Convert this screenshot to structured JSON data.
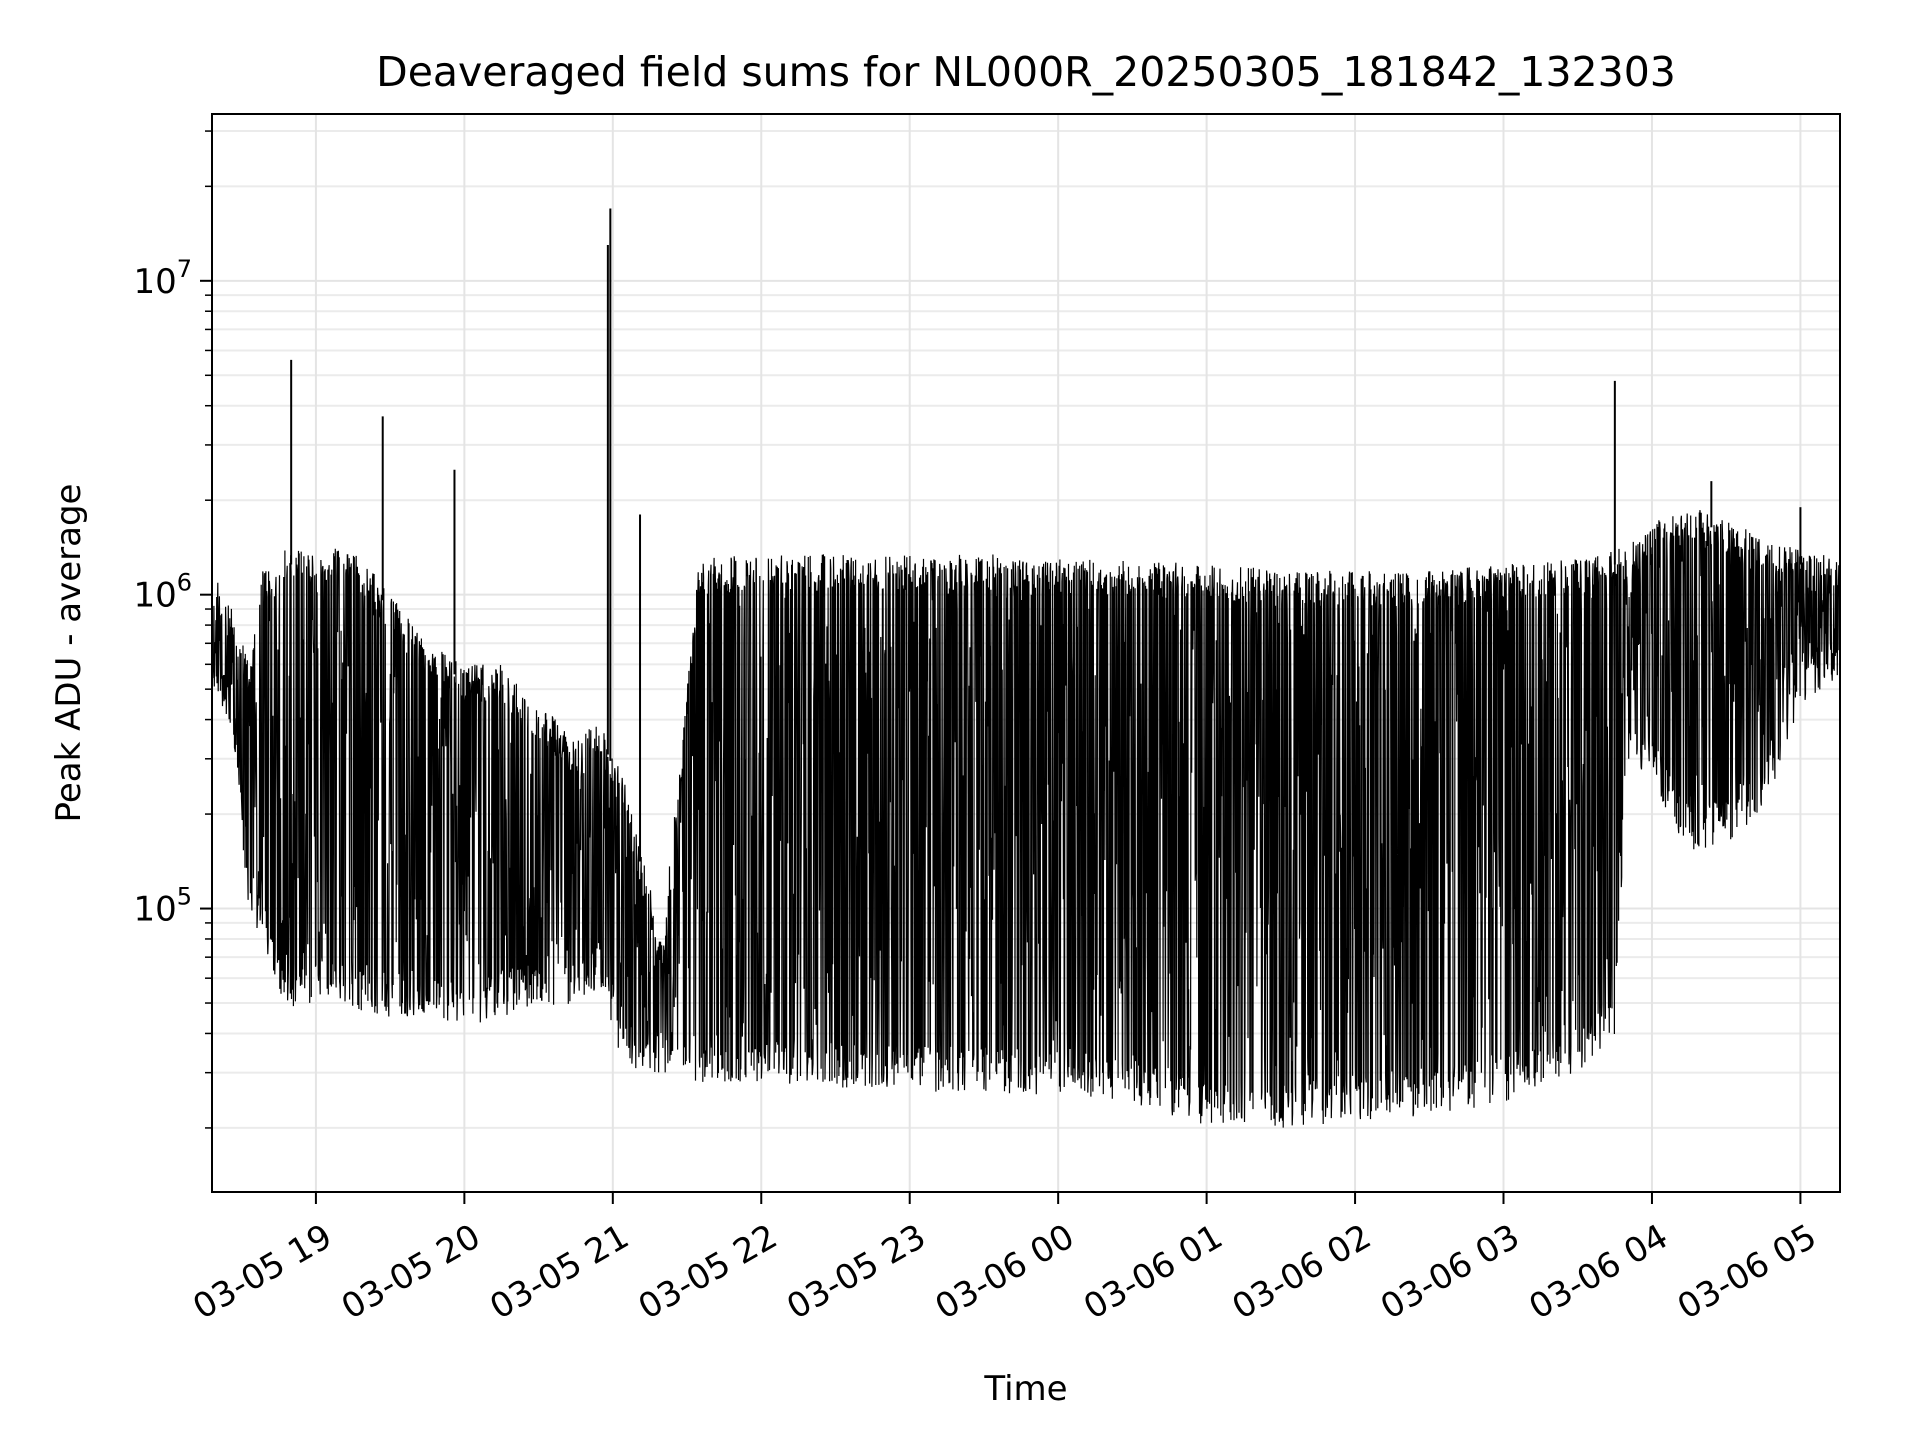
{
  "chart_data": {
    "type": "line",
    "title": "Deaveraged field sums for NL000R_20250305_181842_132303",
    "xlabel": "Time",
    "ylabel": "Peak ADU - average",
    "yscale": "log",
    "grid": true,
    "legend": "none",
    "line_color": "#000000",
    "xlim": [
      "2025-03-05 18:18",
      "2025-03-06 05:16"
    ],
    "ylim": [
      12500,
      34000000
    ],
    "x_ticks": [
      {
        "time": "2025-03-05 19:00",
        "label": "03-05 19"
      },
      {
        "time": "2025-03-05 20:00",
        "label": "03-05 20"
      },
      {
        "time": "2025-03-05 21:00",
        "label": "03-05 21"
      },
      {
        "time": "2025-03-05 22:00",
        "label": "03-05 22"
      },
      {
        "time": "2025-03-05 23:00",
        "label": "03-05 23"
      },
      {
        "time": "2025-03-06 00:00",
        "label": "03-06 00"
      },
      {
        "time": "2025-03-06 01:00",
        "label": "03-06 01"
      },
      {
        "time": "2025-03-06 02:00",
        "label": "03-06 02"
      },
      {
        "time": "2025-03-06 03:00",
        "label": "03-06 03"
      },
      {
        "time": "2025-03-06 04:00",
        "label": "03-06 04"
      },
      {
        "time": "2025-03-06 05:00",
        "label": "03-06 05"
      }
    ],
    "y_ticks": [
      {
        "value": 100000,
        "base": "10",
        "exp": "5"
      },
      {
        "value": 1000000,
        "base": "10",
        "exp": "6"
      },
      {
        "value": 10000000,
        "base": "10",
        "exp": "7"
      }
    ],
    "envelope": [
      {
        "time": "2025-03-05 18:18",
        "high": 1150000,
        "low": 500000
      },
      {
        "time": "2025-03-05 18:27",
        "high": 950000,
        "low": 330000
      },
      {
        "time": "2025-03-05 18:33",
        "high": 600000,
        "low": 95000
      },
      {
        "time": "2025-03-05 18:38",
        "high": 1200000,
        "low": 80000
      },
      {
        "time": "2025-03-05 18:48",
        "high": 1400000,
        "low": 48000
      },
      {
        "time": "2025-03-05 19:00",
        "high": 1400000,
        "low": 50000
      },
      {
        "time": "2025-03-05 19:15",
        "high": 1450000,
        "low": 48000
      },
      {
        "time": "2025-03-05 19:30",
        "high": 1000000,
        "low": 45000
      },
      {
        "time": "2025-03-05 19:45",
        "high": 700000,
        "low": 45000
      },
      {
        "time": "2025-03-05 20:00",
        "high": 600000,
        "low": 42000
      },
      {
        "time": "2025-03-05 20:15",
        "high": 600000,
        "low": 45000
      },
      {
        "time": "2025-03-05 20:30",
        "high": 450000,
        "low": 50000
      },
      {
        "time": "2025-03-05 20:45",
        "high": 350000,
        "low": 48000
      },
      {
        "time": "2025-03-05 20:55",
        "high": 400000,
        "low": 55000
      },
      {
        "time": "2025-03-05 21:05",
        "high": 250000,
        "low": 30000
      },
      {
        "time": "2025-03-05 21:20",
        "high": 80000,
        "low": 30000
      },
      {
        "time": "2025-03-05 21:35",
        "high": 1300000,
        "low": 28000
      },
      {
        "time": "2025-03-05 22:00",
        "high": 1350000,
        "low": 28000
      },
      {
        "time": "2025-03-05 22:30",
        "high": 1350000,
        "low": 27000
      },
      {
        "time": "2025-03-05 23:00",
        "high": 1350000,
        "low": 26000
      },
      {
        "time": "2025-03-05 23:30",
        "high": 1350000,
        "low": 26000
      },
      {
        "time": "2025-03-06 00:00",
        "high": 1300000,
        "low": 25000
      },
      {
        "time": "2025-03-06 00:30",
        "high": 1300000,
        "low": 24000
      },
      {
        "time": "2025-03-06 01:00",
        "high": 1250000,
        "low": 20000
      },
      {
        "time": "2025-03-06 01:30",
        "high": 1200000,
        "low": 20000
      },
      {
        "time": "2025-03-06 02:00",
        "high": 1200000,
        "low": 21000
      },
      {
        "time": "2025-03-06 02:30",
        "high": 1200000,
        "low": 22000
      },
      {
        "time": "2025-03-06 03:00",
        "high": 1250000,
        "low": 24000
      },
      {
        "time": "2025-03-06 03:30",
        "high": 1300000,
        "low": 30000
      },
      {
        "time": "2025-03-06 03:45",
        "high": 1400000,
        "low": 40000
      },
      {
        "time": "2025-03-06 03:50",
        "high": 1500000,
        "low": 300000
      },
      {
        "time": "2025-03-06 04:00",
        "high": 1700000,
        "low": 250000
      },
      {
        "time": "2025-03-06 04:15",
        "high": 1900000,
        "low": 150000
      },
      {
        "time": "2025-03-06 04:30",
        "high": 1800000,
        "low": 160000
      },
      {
        "time": "2025-03-06 04:45",
        "high": 1500000,
        "low": 200000
      },
      {
        "time": "2025-03-06 05:00",
        "high": 1400000,
        "low": 450000
      },
      {
        "time": "2025-03-06 05:16",
        "high": 1300000,
        "low": 550000
      }
    ],
    "spikes": [
      {
        "time": "2025-03-05 18:50",
        "value": 5600000
      },
      {
        "time": "2025-03-05 19:27",
        "value": 3700000
      },
      {
        "time": "2025-03-05 19:56",
        "value": 2500000
      },
      {
        "time": "2025-03-05 20:59",
        "value": 17000000
      },
      {
        "time": "2025-03-05 20:58",
        "value": 13000000
      },
      {
        "time": "2025-03-05 21:11",
        "value": 1800000
      },
      {
        "time": "2025-03-06 03:45",
        "value": 4800000
      },
      {
        "time": "2025-03-06 04:24",
        "value": 2300000
      },
      {
        "time": "2025-03-06 05:00",
        "value": 1900000
      }
    ]
  }
}
